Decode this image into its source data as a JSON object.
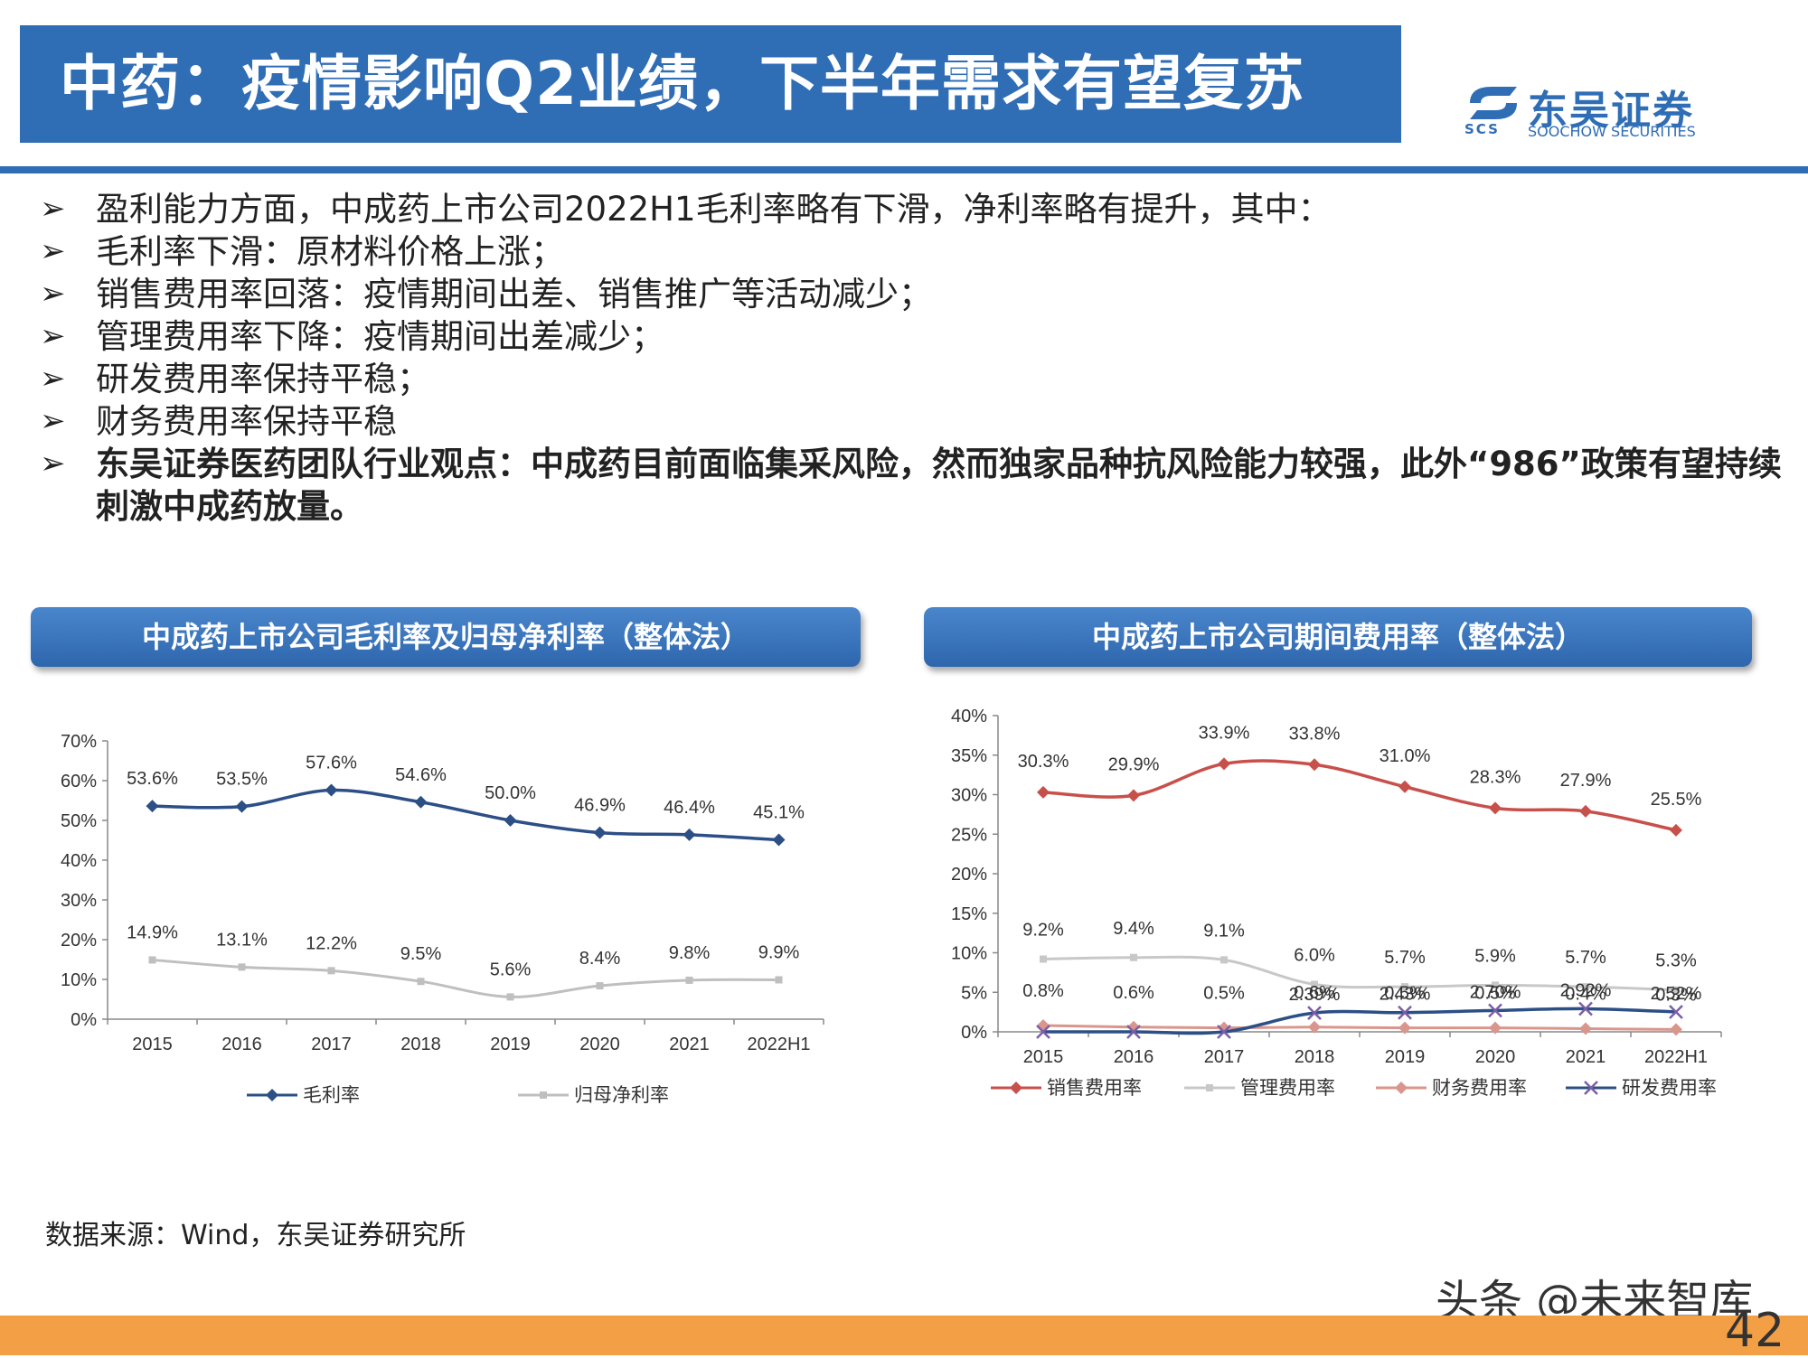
{
  "header": {
    "title": "中药：疫情影响Q2业绩，下半年需求有望复苏",
    "logo_name": "东吴证券",
    "logo_en": "SOOCHOW SECURITIES",
    "logo_abbr": "SCS",
    "brand_color": "#2f6db5"
  },
  "bullets": [
    {
      "text": "盈利能力方面，中成药上市公司2022H1毛利率略有下滑，净利率略有提升，其中：",
      "bold": false
    },
    {
      "text": "毛利率下滑：原材料价格上涨；",
      "bold": false
    },
    {
      "text": "销售费用率回落：疫情期间出差、销售推广等活动减少；",
      "bold": false
    },
    {
      "text": "管理费用率下降：疫情期间出差减少；",
      "bold": false
    },
    {
      "text": "研发费用率保持平稳；",
      "bold": false
    },
    {
      "text": "财务费用率保持平稳",
      "bold": false
    },
    {
      "text": "东吴证券医药团队行业观点：中成药目前面临集采风险，然而独家品种抗风险能力较强，此外“986”政策有望持续刺激中成药放量。",
      "bold": true
    }
  ],
  "bullet_icon": "arrow-bullet-icon",
  "chart_data": [
    {
      "type": "line",
      "title": "中成药上市公司毛利率及归母净利率（整体法）",
      "categories": [
        "2015",
        "2016",
        "2017",
        "2018",
        "2019",
        "2020",
        "2021",
        "2022H1"
      ],
      "yticks": [
        "0%",
        "10%",
        "20%",
        "30%",
        "40%",
        "50%",
        "60%",
        "70%"
      ],
      "ylim": [
        0,
        70
      ],
      "legend_position": "bottom",
      "series": [
        {
          "name": "毛利率",
          "color": "#2c4f86",
          "marker": "diamond",
          "values": [
            53.6,
            53.5,
            57.6,
            54.6,
            50.0,
            46.9,
            46.4,
            45.1
          ],
          "labels": [
            "53.6%",
            "53.5%",
            "57.6%",
            "54.6%",
            "50.0%",
            "46.9%",
            "46.4%",
            "45.1%"
          ]
        },
        {
          "name": "归母净利率",
          "color": "#bfbfbf",
          "marker": "square",
          "values": [
            14.9,
            13.1,
            12.2,
            9.5,
            5.6,
            8.4,
            9.8,
            9.9
          ],
          "labels": [
            "14.9%",
            "13.1%",
            "12.2%",
            "9.5%",
            "5.6%",
            "8.4%",
            "9.8%",
            "9.9%"
          ]
        }
      ]
    },
    {
      "type": "line",
      "title": "中成药上市公司期间费用率（整体法）",
      "categories": [
        "2015",
        "2016",
        "2017",
        "2018",
        "2019",
        "2020",
        "2021",
        "2022H1"
      ],
      "yticks": [
        "0%",
        "5%",
        "10%",
        "15%",
        "20%",
        "25%",
        "30%",
        "35%",
        "40%"
      ],
      "ylim": [
        0,
        40
      ],
      "legend_position": "bottom",
      "series": [
        {
          "name": "销售费用率",
          "color": "#c8504b",
          "marker": "diamond",
          "values": [
            30.3,
            29.9,
            33.9,
            33.8,
            31.0,
            28.3,
            27.9,
            25.5
          ],
          "labels": [
            "30.3%",
            "29.9%",
            "33.9%",
            "33.8%",
            "31.0%",
            "28.3%",
            "27.9%",
            "25.5%"
          ]
        },
        {
          "name": "管理费用率",
          "color": "#c8c8c8",
          "marker": "square",
          "values": [
            9.2,
            9.4,
            9.1,
            6.0,
            5.7,
            5.9,
            5.7,
            5.3
          ],
          "labels": [
            "9.2%",
            "9.4%",
            "9.1%",
            "6.0%",
            "5.7%",
            "5.9%",
            "5.7%",
            "5.3%"
          ]
        },
        {
          "name": "财务费用率",
          "color": "#d9968c",
          "marker": "diamond",
          "values": [
            0.8,
            0.6,
            0.5,
            0.6,
            0.5,
            0.5,
            0.4,
            0.3
          ],
          "labels": [
            "0.8%",
            "0.6%",
            "0.5%",
            "0.6%",
            "0.5%",
            "0.5%",
            "0.4%",
            "0.3%"
          ]
        },
        {
          "name": "研发费用率",
          "color": "#2c4f86",
          "marker": "x",
          "values": [
            0,
            0,
            0,
            2.39,
            2.43,
            2.7,
            2.92,
            2.52
          ],
          "labels": [
            "",
            "",
            "",
            "2.39%",
            "2.43%",
            "2.70%",
            "2.92%",
            "2.52%"
          ]
        }
      ]
    }
  ],
  "source_note": "数据来源：Wind，东吴证券研究所",
  "watermark": "头条 @未来智库",
  "page_number": "42",
  "footer_color": "#f29f45"
}
